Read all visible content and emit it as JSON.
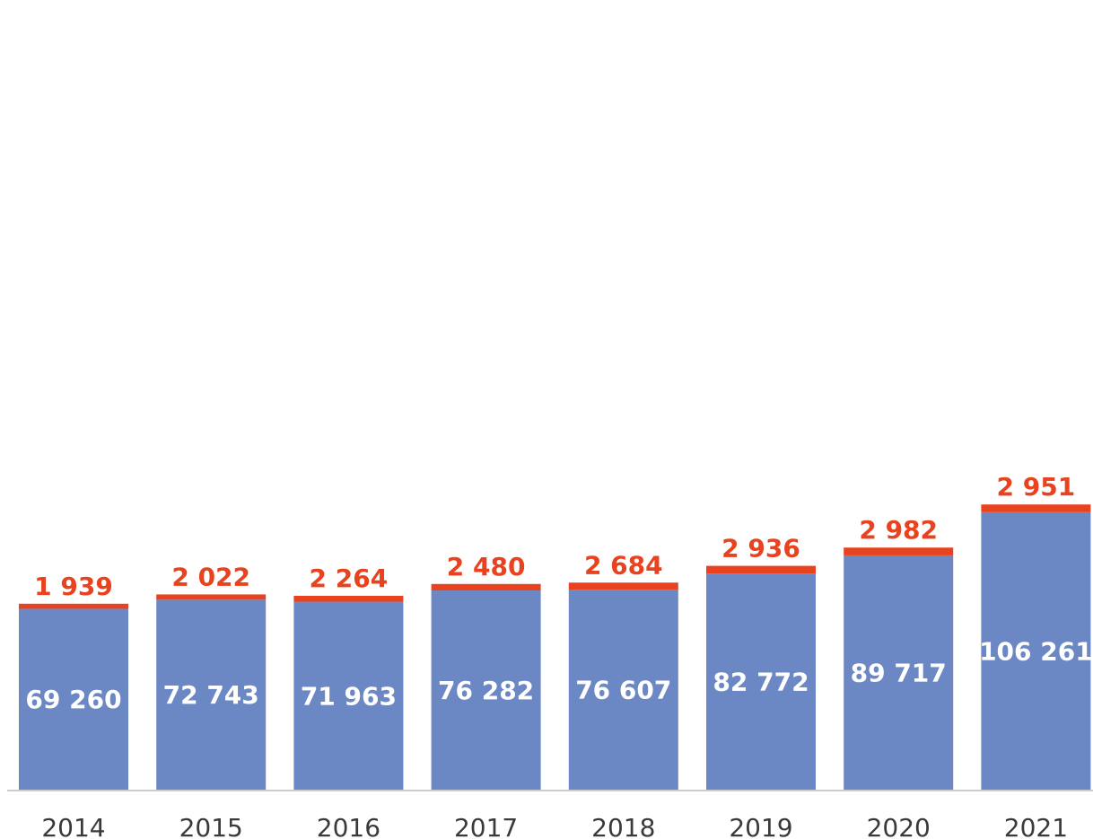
{
  "chart_data": {
    "type": "bar",
    "stacked": true,
    "categories": [
      "2014",
      "2015",
      "2016",
      "2017",
      "2018",
      "2019",
      "2020",
      "2021"
    ],
    "series": [
      {
        "values": [
          69260,
          72743,
          71963,
          76282,
          76607,
          82772,
          89717,
          106261
        ],
        "labels": [
          "69 260",
          "72 743",
          "71 963",
          "76 282",
          "76 607",
          "82 772",
          "89 717",
          "106 261"
        ]
      },
      {
        "values": [
          1939,
          2022,
          2264,
          2480,
          2684,
          2936,
          2982,
          2951
        ],
        "labels": [
          "1 939",
          "2 022",
          "2 264",
          "2 480",
          "2 684",
          "2 936",
          "2 982",
          "2 951"
        ]
      }
    ],
    "colors": {
      "base": "#6c88c4",
      "top": "#e8421e",
      "axis": "#cccccc",
      "tick": "#3a3a3a"
    },
    "ylim": [
      0,
      220000
    ],
    "grid": false,
    "legend": "none"
  }
}
